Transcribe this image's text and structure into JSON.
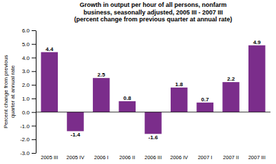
{
  "chart_data": {
    "type": "bar",
    "title": "Growth in output per hour of all persons, nonfarm\nbusiness, seasonally adjusted, 2005 III - 2007 III\n(percent change from previous quarter at annual rate)",
    "ylabel": "Percent change from previous\nquarter at annual rate",
    "categories": [
      "2005 III",
      "2005 IV",
      "2006 I",
      "2006 II",
      "2006 III",
      "2006 IV",
      "2007 I",
      "2007 II",
      "2007 III"
    ],
    "values": [
      4.4,
      -1.4,
      2.5,
      0.8,
      -1.6,
      1.8,
      0.7,
      2.2,
      4.9
    ],
    "color": "#7B2D8B",
    "ylim": [
      -3.0,
      6.0
    ],
    "yticks": [
      {
        "value": -3.0,
        "label": "-3.0"
      },
      {
        "value": -2.0,
        "label": "-2.0"
      },
      {
        "value": -1.0,
        "label": "-1.0"
      },
      {
        "value": 0.0,
        "label": "0.0"
      },
      {
        "value": 1.0,
        "label": "1.0"
      },
      {
        "value": 2.0,
        "label": "2.0"
      },
      {
        "value": 3.0,
        "label": "3.0"
      },
      {
        "value": 4.0,
        "label": "4.0"
      },
      {
        "value": 5.0,
        "label": "5.0"
      },
      {
        "value": 6.0,
        "label": "6.0"
      }
    ],
    "grid": false,
    "data_labels": true
  }
}
